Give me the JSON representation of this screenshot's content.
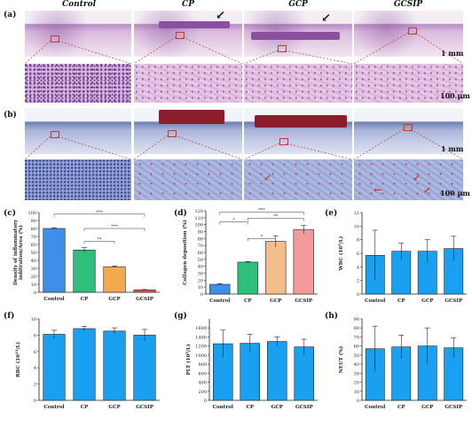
{
  "headers": [
    "Control",
    "CP",
    "GCP",
    "GCSIP"
  ],
  "panel_letters": {
    "a": "(a)",
    "b": "(b)",
    "c": "(c)",
    "d": "(d)",
    "e": "(e)",
    "f": "(f)",
    "g": "(g)",
    "h": "(h)"
  },
  "scale_bars": {
    "low": "1 mm",
    "high": "100 μm"
  },
  "chart_data": [
    {
      "panel": "c",
      "type": "bar",
      "categories": [
        "Control",
        "CP",
        "GCP",
        "GCSIP"
      ],
      "values": [
        80,
        53,
        32,
        3
      ],
      "errors": [
        1,
        3,
        1,
        0.5
      ],
      "ylabel": "Density of inflammatory infiltration/Area (%)",
      "ylim": [
        0,
        100
      ],
      "yticks": [
        0,
        10,
        20,
        30,
        40,
        50,
        60,
        70,
        80,
        90,
        100
      ],
      "colors": [
        "#3d8fe8",
        "#2ec07b",
        "#f5a94f",
        "#f05252"
      ],
      "significance": [
        "***",
        "**",
        "***"
      ]
    },
    {
      "panel": "d",
      "type": "bar",
      "categories": [
        "Control",
        "CP",
        "GCP",
        "GCSIP"
      ],
      "values": [
        14,
        46,
        76,
        93
      ],
      "errors": [
        1,
        1,
        8,
        6
      ],
      "ylabel": "Collagen deposition (%)",
      "ylim": [
        0,
        120
      ],
      "yticks": [
        0,
        10,
        20,
        30,
        40,
        50,
        60,
        70,
        80,
        90,
        100,
        110,
        120
      ],
      "colors": [
        "#3d8fe8",
        "#2ec07b",
        "#f5bd8c",
        "#f59a9a"
      ],
      "significance": [
        "*",
        "***",
        "*",
        "**"
      ]
    },
    {
      "panel": "e",
      "type": "bar",
      "categories": [
        "Control",
        "CP",
        "GCP",
        "GCSIP"
      ],
      "values": [
        5.7,
        6.3,
        6.3,
        6.7
      ],
      "errors": [
        3.7,
        1.2,
        1.7,
        1.8
      ],
      "ylabel": "WBC (10^9/L)",
      "ylim": [
        0,
        12
      ],
      "yticks": [
        0,
        2,
        4,
        6,
        8,
        10,
        12
      ],
      "colors": [
        "#1aa0f0",
        "#1aa0f0",
        "#1aa0f0",
        "#1aa0f0"
      ],
      "significance": []
    },
    {
      "panel": "f",
      "type": "bar",
      "categories": [
        "Control",
        "CP",
        "GCP",
        "GCSIP"
      ],
      "values": [
        8.1,
        8.8,
        8.5,
        8.0
      ],
      "errors": [
        0.5,
        0.3,
        0.4,
        0.7
      ],
      "ylabel": "RBC (10^12/L)",
      "ylim": [
        0,
        10
      ],
      "yticks": [
        0,
        2,
        4,
        6,
        8,
        10
      ],
      "colors": [
        "#1aa0f0",
        "#1aa0f0",
        "#1aa0f0",
        "#1aa0f0"
      ],
      "significance": []
    },
    {
      "panel": "g",
      "type": "bar",
      "categories": [
        "Control",
        "CP",
        "GCP",
        "GCSIP"
      ],
      "values": [
        1250,
        1260,
        1300,
        1180
      ],
      "errors": [
        300,
        200,
        100,
        170
      ],
      "ylabel": "PLT (10^9/L)",
      "ylim": [
        0,
        1800
      ],
      "yticks": [
        0,
        200,
        400,
        600,
        800,
        1000,
        1200,
        1400,
        1600
      ],
      "colors": [
        "#1aa0f0",
        "#1aa0f0",
        "#1aa0f0",
        "#1aa0f0"
      ],
      "significance": []
    },
    {
      "panel": "h",
      "type": "bar",
      "categories": [
        "Control",
        "CP",
        "GCP",
        "GCSIP"
      ],
      "values": [
        57,
        59,
        60,
        58
      ],
      "errors": [
        25,
        13,
        20,
        11
      ],
      "ylabel": "NEUT (%)",
      "ylim": [
        0,
        90
      ],
      "yticks": [
        0,
        10,
        20,
        30,
        40,
        50,
        60,
        70,
        80,
        90
      ],
      "colors": [
        "#1aa0f0",
        "#1aa0f0",
        "#1aa0f0",
        "#1aa0f0"
      ],
      "significance": []
    }
  ]
}
